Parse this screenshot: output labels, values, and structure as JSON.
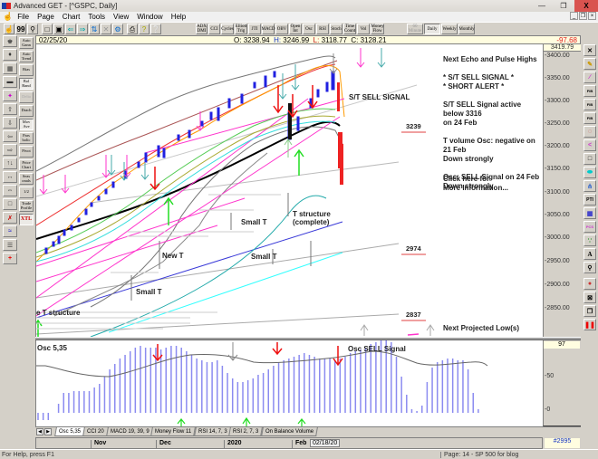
{
  "window": {
    "title": "Advanced GET - [^GSPC, Daily]",
    "controls": {
      "minimize": "—",
      "restore": "❐",
      "close": "X"
    },
    "mdi_controls": {
      "minimize": "_",
      "restore": "❐",
      "close": "×"
    }
  },
  "menubar": {
    "items": [
      "File",
      "Page",
      "Chart",
      "Tools",
      "View",
      "Window",
      "Help"
    ]
  },
  "toolbar": {
    "left_icons": [
      "hand-icon",
      "quote-icon",
      "find-icon",
      "new-icon",
      "save-icon",
      "open-icon",
      "send-icon",
      "refresh-icon",
      "delete-icon",
      "setup-icon",
      "print-icon",
      "help-icon",
      "context-help-icon"
    ],
    "studies": [
      "ADX DMI",
      "CCI",
      "Cycles",
      "Elliott Trig",
      "JTI",
      "MACD",
      "OBV",
      "Open Int",
      "Osc",
      "RSI",
      "Stoch",
      "Time Count",
      "Vol",
      "Money Flow"
    ],
    "timeframes": [
      {
        "label": "60 Minute",
        "enabled": false
      },
      {
        "label": "Daily",
        "active": true
      },
      {
        "label": "Weekly"
      },
      {
        "label": "Monthly"
      }
    ]
  },
  "left_studies": [
    {
      "label": "Auto Gann"
    },
    {
      "label": "Auto Trend"
    },
    {
      "label": "Bias"
    },
    {
      "label": "Bol Band",
      "pressed": true
    },
    {
      "label": "Delta",
      "disabled": true
    },
    {
      "label": "Drach"
    },
    {
      "label": "Mov Ave",
      "pressed": true
    },
    {
      "label": "Pars bolic"
    },
    {
      "label": "Pivot"
    },
    {
      "label": "Price Chart"
    },
    {
      "label": "Seas onals"
    },
    {
      "label": "1/2"
    },
    {
      "label": "Trade Profile"
    },
    {
      "label": "XTL",
      "pressed": true
    }
  ],
  "left_tools": [
    "cursor-icon",
    "select-icon",
    "grid-icon",
    "study-icon",
    "ellipse-icon",
    "up-arrow-icon",
    "down-arrow-icon",
    "left-arrow-icon",
    "right-arrow-icon",
    "time-icon",
    "expand-icon",
    "compress-icon",
    "frame-icon",
    "lines-icon",
    "wave-icon",
    "fill-icon",
    "crosshair-icon"
  ],
  "right_tools": [
    "close-icon",
    "pencil-icon",
    "line-icon",
    "fib-retracement-icon",
    "fib-extension-icon",
    "fib-time-icon",
    "fib-arc-icon",
    "fan-icon",
    "box-icon",
    "ellipse-icon",
    "pitchfork-icon",
    "pti-icon",
    "grid-icon",
    "pcs-icon",
    "magnet-icon",
    "text-icon",
    "zoom-icon",
    "marker-icon",
    "cross-icon",
    "copy-icon",
    "pause-icon"
  ],
  "infobar": {
    "date": "02/25/20",
    "open_label": "O:",
    "open": "3238.94",
    "high_label": "H:",
    "high": "3246.99",
    "low_label": "L:",
    "low": "3118.77",
    "close_label": "C:",
    "close": "3128.21",
    "change": "-97.68"
  },
  "price_axis": {
    "top_value": "3419.79",
    "ticks": [
      "3400.00",
      "3350.00",
      "3300.00",
      "3250.00",
      "3200.00",
      "3150.00",
      "3100.00",
      "3050.00",
      "3000.00",
      "2950.00",
      "2900.00",
      "2850.00"
    ]
  },
  "annotations": {
    "right_notes": "Next Echo and Pulse Highs\n\n* S/T SELL SIGNAL *\n* SHORT ALERT *\n\nS/T SELL Signal active below 3316\non 24 Feb\n\nT volume Osc: negative on 21 Feb\nDown strongly\n\nOsc: SELL Signal on 24 Feb\nDown strongly",
    "more_info": "Click here for\nMore Information...",
    "st_sell_signal": "S/T SELL SIGNAL",
    "level_3239": "3239",
    "level_2974": "2974",
    "level_2837": "2837",
    "next_projected_low": "Next Projected Low(s)",
    "small_t_1": "Small T",
    "small_t_2": "Small T",
    "small_t_3": "Small T",
    "new_t": "New T",
    "t_structure_complete": "T structure\n(complete)",
    "t_structure_left": "e T structure"
  },
  "oscillator": {
    "label": "Osc 5,35",
    "top_value": "97",
    "ticks": [
      "50",
      "0"
    ],
    "sell_label": "Osc SELL Signal"
  },
  "tabs": [
    "Osc 5,35",
    "CCI 20",
    "MACD 19, 39, 9",
    "Money Flow 11",
    "RSI 14, 7, 3",
    "RSI 2, 7, 3",
    "On Balance Volume"
  ],
  "time_axis": {
    "labels": [
      "Nov",
      "Dec",
      "2020",
      "Feb"
    ],
    "current_date": "02/18/20"
  },
  "bar_count": "#2995",
  "statusbar": {
    "help": "For Help, press F1",
    "page": "Page: 14 - SP 500 for blog"
  },
  "colors": {
    "sell_arrow": "#ee1111",
    "buy_arrow": "#22dd22",
    "candle": "#2020e0",
    "osc_bar": "#8b8bf0",
    "level_underline": "#e04040"
  }
}
